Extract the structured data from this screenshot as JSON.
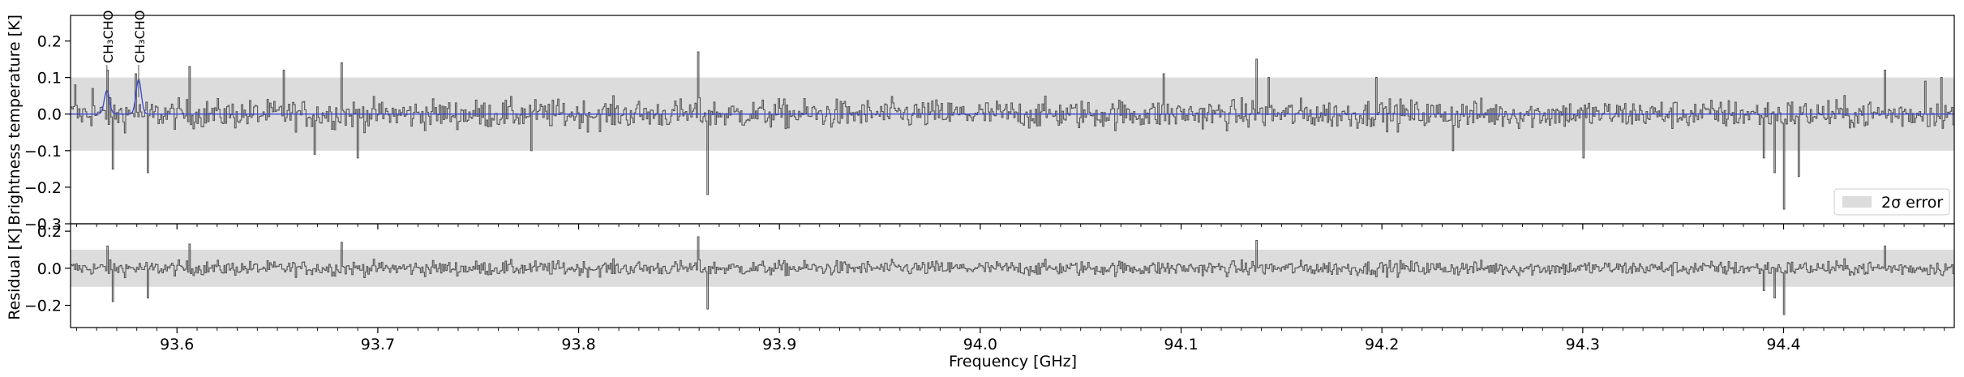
{
  "chart_data": [
    {
      "type": "line",
      "panel": "spectrum",
      "ylabel": "Brightness temperature [K]",
      "xlim": [
        93.547,
        94.485
      ],
      "ylim": [
        -0.3,
        0.27
      ],
      "yticks": [
        0.2,
        0.1,
        0.0,
        -0.1,
        -0.2,
        -0.3
      ],
      "ytick_labels": [
        "0.2",
        "0.1",
        "0.0",
        "−0.1",
        "−0.2",
        "−0.3"
      ],
      "error_band": {
        "label": "2σ error",
        "lower": -0.1,
        "upper": 0.1,
        "color": "#dcdcdc"
      },
      "legend": {
        "location": "lower-right",
        "entry": "2σ error"
      },
      "line_annotations": [
        {
          "label": "CH₃CHO",
          "x": 93.5651
        },
        {
          "label": "CH₃CHO",
          "x": 93.5809
        }
      ],
      "series": [
        {
          "style": "steps",
          "color": "#555555",
          "spikes": [
            [
              93.549,
              0.08
            ],
            [
              93.558,
              0.07
            ],
            [
              93.565,
              0.12
            ],
            [
              93.568,
              -0.15
            ],
            [
              93.579,
              0.11
            ],
            [
              93.585,
              -0.16
            ],
            [
              93.606,
              0.13
            ],
            [
              93.653,
              0.12
            ],
            [
              93.668,
              -0.11
            ],
            [
              93.682,
              0.14
            ],
            [
              93.69,
              -0.12
            ],
            [
              93.776,
              -0.1
            ],
            [
              93.859,
              0.17
            ],
            [
              93.864,
              -0.22
            ],
            [
              94.091,
              0.11
            ],
            [
              94.137,
              0.15
            ],
            [
              94.143,
              0.1
            ],
            [
              94.197,
              0.1
            ],
            [
              94.235,
              -0.1
            ],
            [
              94.3,
              -0.12
            ],
            [
              94.39,
              -0.12
            ],
            [
              94.395,
              -0.16
            ],
            [
              94.4,
              -0.26
            ],
            [
              94.407,
              -0.17
            ],
            [
              94.45,
              0.12
            ],
            [
              94.47,
              0.09
            ],
            [
              94.478,
              0.1
            ]
          ]
        },
        {
          "style": "line",
          "color": "#3a45d6",
          "peaks": [
            [
              93.5651,
              0.065
            ],
            [
              93.5809,
              0.095
            ]
          ]
        }
      ]
    },
    {
      "type": "line",
      "panel": "residual",
      "ylabel": "Residual [K]",
      "xlabel": "Frequency [GHz]",
      "xlim": [
        93.547,
        94.485
      ],
      "ylim": [
        -0.32,
        0.24
      ],
      "yticks": [
        0.2,
        0.0,
        -0.2
      ],
      "ytick_labels": [
        "0.2",
        "0.0",
        "−0.2"
      ],
      "xticks": [
        93.6,
        93.7,
        93.8,
        93.9,
        94.0,
        94.1,
        94.2,
        94.3,
        94.4
      ],
      "xtick_labels": [
        "93.6",
        "93.7",
        "93.8",
        "93.9",
        "94.0",
        "94.1",
        "94.2",
        "94.3",
        "94.4"
      ],
      "error_band": {
        "lower": -0.1,
        "upper": 0.1
      },
      "series": [
        {
          "style": "steps",
          "color": "#555555",
          "spikes": [
            [
              93.565,
              0.12
            ],
            [
              93.568,
              -0.18
            ],
            [
              93.585,
              -0.16
            ],
            [
              93.606,
              0.13
            ],
            [
              93.682,
              0.14
            ],
            [
              93.859,
              0.17
            ],
            [
              93.864,
              -0.22
            ],
            [
              94.137,
              0.15
            ],
            [
              94.39,
              -0.12
            ],
            [
              94.395,
              -0.16
            ],
            [
              94.4,
              -0.25
            ],
            [
              94.45,
              0.12
            ]
          ]
        }
      ]
    }
  ]
}
